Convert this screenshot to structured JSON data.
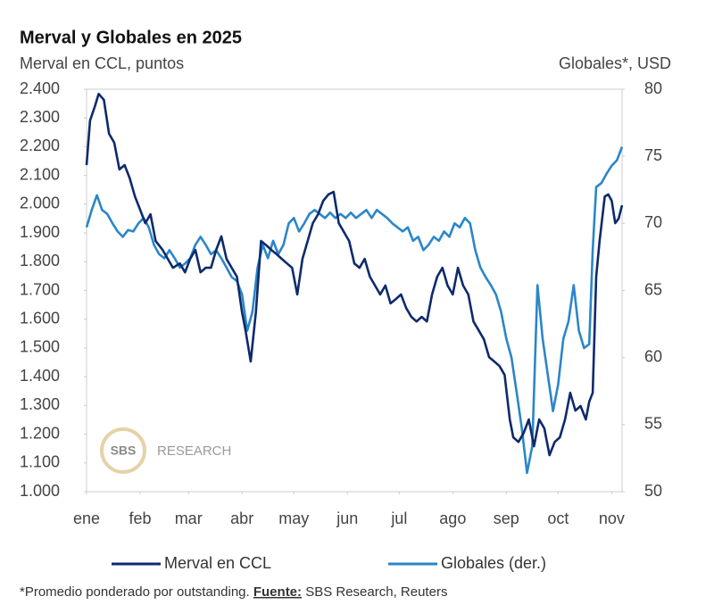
{
  "chart_data": {
    "type": "line",
    "title": "Merval y Globales en 2025",
    "ylabel": "Merval en CCL, puntos",
    "y2label": "Globales*, USD",
    "xlim": [
      0,
      310
    ],
    "xticks": [
      {
        "value": 0,
        "label": "ene"
      },
      {
        "value": 31,
        "label": "feb"
      },
      {
        "value": 59,
        "label": "mar"
      },
      {
        "value": 90,
        "label": "abr"
      },
      {
        "value": 120,
        "label": "may"
      },
      {
        "value": 151,
        "label": "jun"
      },
      {
        "value": 181,
        "label": "jul"
      },
      {
        "value": 212,
        "label": "ago"
      },
      {
        "value": 243,
        "label": "sep"
      },
      {
        "value": 273,
        "label": "oct"
      },
      {
        "value": 304,
        "label": "nov"
      }
    ],
    "ylim": [
      1000,
      2400
    ],
    "yticks": [
      {
        "value": 1000,
        "label": "1.000"
      },
      {
        "value": 1100,
        "label": "1.100"
      },
      {
        "value": 1200,
        "label": "1.200"
      },
      {
        "value": 1300,
        "label": "1.300"
      },
      {
        "value": 1400,
        "label": "1.400"
      },
      {
        "value": 1500,
        "label": "1.500"
      },
      {
        "value": 1600,
        "label": "1.600"
      },
      {
        "value": 1700,
        "label": "1.700"
      },
      {
        "value": 1800,
        "label": "1.800"
      },
      {
        "value": 1900,
        "label": "1.900"
      },
      {
        "value": 2000,
        "label": "2.000"
      },
      {
        "value": 2100,
        "label": "2.100"
      },
      {
        "value": 2200,
        "label": "2.200"
      },
      {
        "value": 2300,
        "label": "2.300"
      },
      {
        "value": 2400,
        "label": "2.400"
      }
    ],
    "y2lim": [
      50,
      80
    ],
    "y2ticks": [
      50,
      55,
      60,
      65,
      70,
      75,
      80
    ],
    "series": [
      {
        "name": "Merval en CCL",
        "color": "#0d2a6b",
        "x": [
          0,
          2,
          5,
          7,
          10,
          13,
          16,
          19,
          22,
          25,
          28,
          31,
          34,
          37,
          40,
          44,
          47,
          50,
          54,
          57,
          60,
          63,
          66,
          69,
          72,
          75,
          78,
          81,
          84,
          87,
          90,
          92,
          95,
          98,
          101,
          104,
          107,
          110,
          113,
          116,
          119,
          122,
          125,
          128,
          131,
          134,
          137,
          140,
          143,
          146,
          149,
          152,
          155,
          158,
          161,
          164,
          167,
          170,
          173,
          176,
          179,
          182,
          185,
          188,
          191,
          194,
          197,
          200,
          203,
          206,
          209,
          212,
          215,
          218,
          221,
          224,
          227,
          230,
          233,
          236,
          239,
          242,
          245,
          247,
          250,
          253,
          256,
          259,
          262,
          265,
          268,
          271,
          274,
          277,
          280,
          283,
          286,
          289,
          291,
          293,
          295,
          297,
          300,
          302,
          304,
          306,
          308,
          310
        ],
        "values": [
          2136,
          2291,
          2344,
          2384,
          2363,
          2245,
          2214,
          2121,
          2136,
          2090,
          2027,
          1981,
          1934,
          1965,
          1872,
          1841,
          1810,
          1779,
          1794,
          1763,
          1810,
          1841,
          1763,
          1779,
          1779,
          1841,
          1888,
          1810,
          1779,
          1748,
          1624,
          1561,
          1453,
          1624,
          1872,
          1857,
          1841,
          1826,
          1810,
          1794,
          1779,
          1686,
          1810,
          1872,
          1934,
          1965,
          2012,
          2034,
          2043,
          1934,
          1903,
          1872,
          1794,
          1779,
          1810,
          1748,
          1717,
          1686,
          1717,
          1655,
          1670,
          1686,
          1639,
          1608,
          1592,
          1608,
          1592,
          1686,
          1748,
          1779,
          1717,
          1686,
          1779,
          1717,
          1686,
          1592,
          1561,
          1530,
          1468,
          1453,
          1437,
          1406,
          1251,
          1189,
          1173,
          1204,
          1251,
          1158,
          1251,
          1220,
          1127,
          1173,
          1189,
          1251,
          1344,
          1282,
          1298,
          1251,
          1313,
          1344,
          1748,
          1872,
          2027,
          2034,
          2012,
          1934,
          1950,
          1996
        ]
      },
      {
        "name": "Globales (der.)",
        "color": "#2b86c8",
        "axis": "y2",
        "x": [
          0,
          3,
          6,
          9,
          12,
          15,
          18,
          21,
          24,
          27,
          30,
          33,
          36,
          39,
          42,
          45,
          48,
          51,
          54,
          57,
          60,
          63,
          66,
          69,
          72,
          75,
          78,
          81,
          84,
          87,
          90,
          93,
          96,
          99,
          102,
          105,
          108,
          111,
          114,
          117,
          120,
          123,
          126,
          129,
          132,
          135,
          138,
          141,
          144,
          147,
          150,
          153,
          156,
          159,
          162,
          165,
          168,
          171,
          174,
          177,
          180,
          183,
          186,
          189,
          192,
          195,
          198,
          201,
          204,
          207,
          210,
          213,
          216,
          219,
          222,
          225,
          228,
          231,
          234,
          237,
          240,
          243,
          246,
          249,
          252,
          255,
          258,
          261,
          264,
          267,
          270,
          273,
          276,
          279,
          282,
          285,
          288,
          291,
          293,
          295,
          298,
          301,
          304,
          307,
          310
        ],
        "values": [
          69.7,
          71.0,
          72.1,
          71.0,
          70.7,
          70.0,
          69.4,
          69.0,
          69.5,
          69.4,
          70.0,
          70.4,
          69.7,
          68.4,
          67.7,
          67.4,
          68.0,
          67.4,
          66.7,
          67.0,
          67.4,
          68.4,
          69.0,
          68.4,
          67.7,
          68.0,
          67.4,
          66.7,
          66.0,
          65.7,
          64.7,
          62.0,
          63.4,
          66.7,
          68.4,
          67.4,
          68.7,
          67.7,
          68.4,
          70.0,
          70.4,
          69.4,
          70.0,
          70.7,
          71.0,
          70.7,
          70.4,
          70.8,
          70.4,
          70.7,
          70.4,
          70.8,
          70.4,
          70.7,
          71.0,
          70.4,
          71.0,
          70.7,
          70.4,
          70.0,
          69.7,
          69.4,
          69.7,
          68.7,
          69.0,
          68.0,
          68.4,
          69.0,
          68.7,
          69.4,
          69.0,
          70.0,
          69.7,
          70.4,
          70.0,
          68.0,
          66.7,
          66.0,
          65.4,
          64.7,
          63.4,
          61.4,
          60.0,
          57.4,
          54.7,
          51.4,
          53.4,
          65.4,
          61.4,
          58.7,
          56.0,
          58.0,
          61.4,
          62.7,
          65.4,
          62.0,
          60.7,
          61.0,
          68.0,
          72.7,
          73.0,
          73.7,
          74.3,
          74.7,
          75.7
        ]
      }
    ]
  },
  "watermark": {
    "logo": "SBS",
    "text": "RESEARCH"
  },
  "footnote": {
    "note": "*Promedio ponderado por outstanding.",
    "source_label": "Fuente:",
    "source": "SBS Research, Reuters"
  }
}
